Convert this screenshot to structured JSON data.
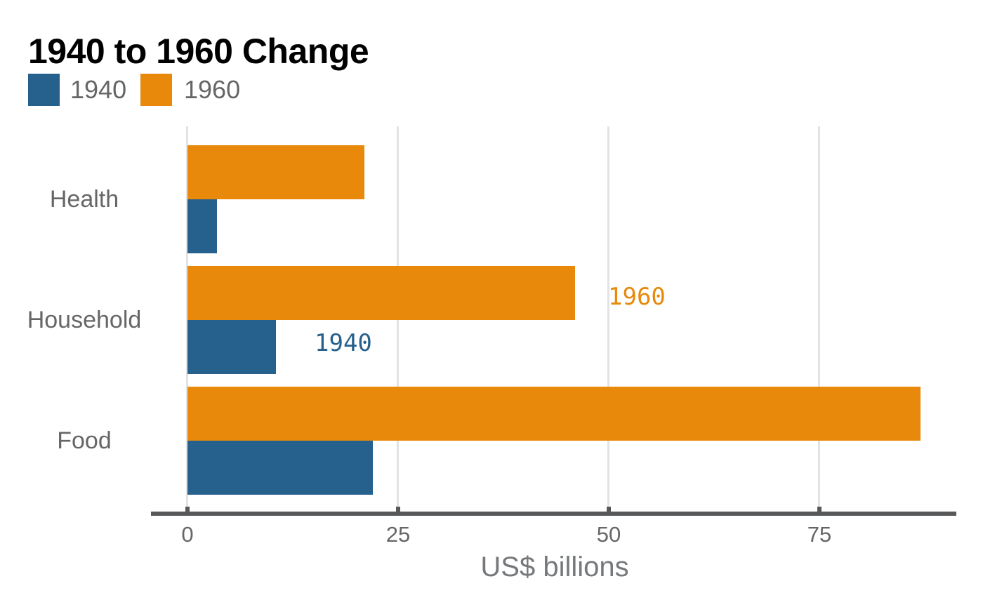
{
  "title": "1940 to 1960 Change",
  "legend": {
    "items": [
      {
        "label": "1940",
        "color": "#26618E"
      },
      {
        "label": "1960",
        "color": "#E8890B"
      }
    ]
  },
  "colors": {
    "series_1940": "#26618E",
    "series_1960": "#E8890B",
    "gridline": "#E3E3E3",
    "axis_line": "#56585A",
    "text_gray": "#666666",
    "axis_title_gray": "#76797C",
    "title_black": "#000000"
  },
  "x_axis": {
    "tick_labels": [
      "0",
      "25",
      "50",
      "75"
    ],
    "title": "US$ billions"
  },
  "annotations": [
    {
      "text": "1960",
      "color": "#E8890B"
    },
    {
      "text": "1940",
      "color": "#26618E"
    }
  ],
  "chart_data": {
    "type": "bar",
    "orientation": "horizontal",
    "title": "1940 to 1960 Change",
    "categories": [
      "Health",
      "Household",
      "Food"
    ],
    "series": [
      {
        "name": "1940",
        "color": "#26618E",
        "values": [
          3.5,
          10.5,
          22
        ]
      },
      {
        "name": "1960",
        "color": "#E8890B",
        "values": [
          21,
          46,
          87
        ]
      }
    ],
    "xlabel": "US$ billions",
    "ylabel": "",
    "x_ticks": [
      0,
      25,
      50,
      75
    ],
    "xlim": [
      -4.3,
      91.3
    ],
    "grid": "vertical",
    "legend_position": "top-left",
    "bar_order_in_group_top_to_bottom": [
      "1960",
      "1940"
    ],
    "annotations": [
      {
        "text": "1960",
        "attached_to": {
          "series": "1960",
          "category": "Household"
        }
      },
      {
        "text": "1940",
        "attached_to": {
          "series": "1940",
          "category": "Household"
        }
      }
    ]
  }
}
